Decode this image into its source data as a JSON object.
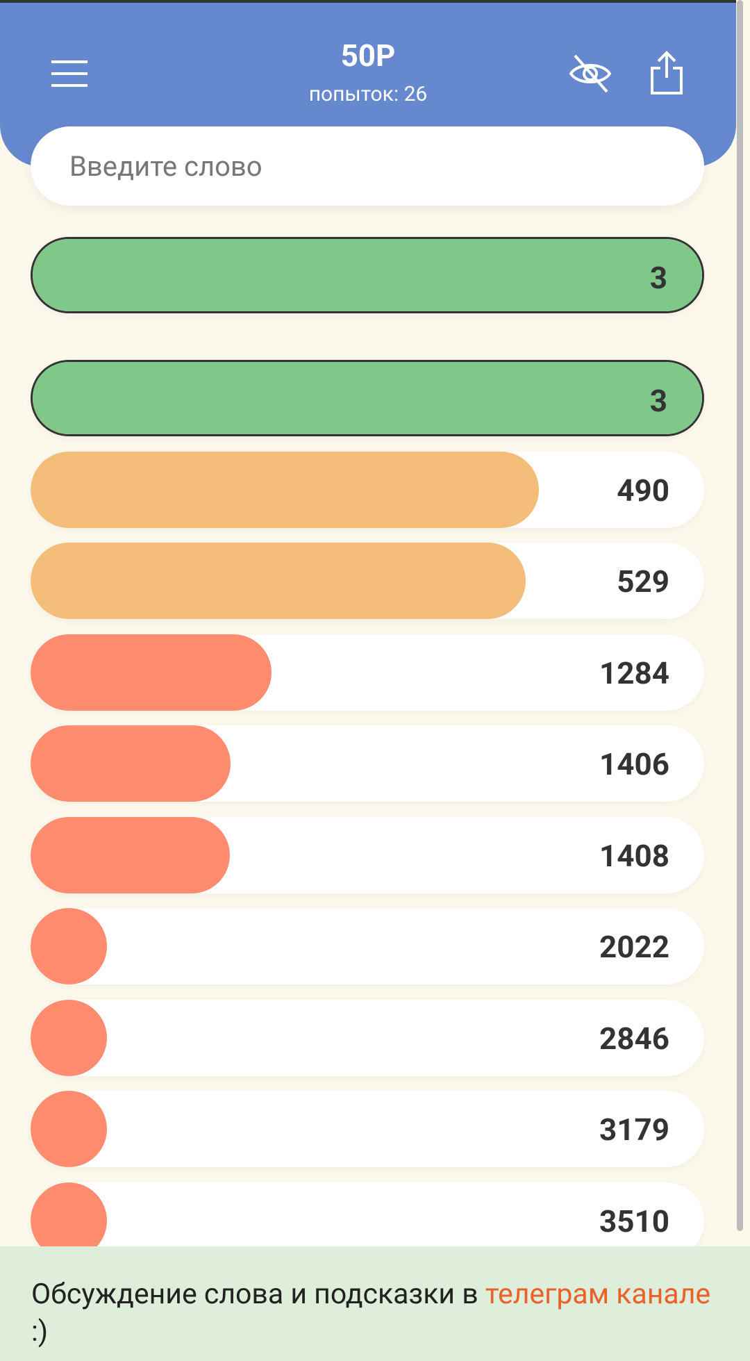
{
  "header": {
    "title": "50P",
    "subtitle": "попыток: 26"
  },
  "input": {
    "placeholder": "Введите слово"
  },
  "guesses": [
    {
      "value": 3,
      "color": "#80c88a"
    },
    {
      "value": 3,
      "color": "#80c88a"
    },
    {
      "value": 490,
      "color": "#f4bd79"
    },
    {
      "value": 529,
      "color": "#f4bd79"
    },
    {
      "value": 1284,
      "color": "#ff8c6f"
    },
    {
      "value": 1406,
      "color": "#ff8c6f"
    },
    {
      "value": 1408,
      "color": "#ff8c6f"
    },
    {
      "value": 2022,
      "color": "#ff8c6f"
    },
    {
      "value": 2846,
      "color": "#ff8c6f"
    },
    {
      "value": 3179,
      "color": "#ff8c6f"
    },
    {
      "value": 3510,
      "color": "#ff8c6f"
    }
  ],
  "footer": {
    "text": "Обсуждение слова и подсказки в",
    "link": "телеграм канале",
    "suffix": ":)"
  }
}
